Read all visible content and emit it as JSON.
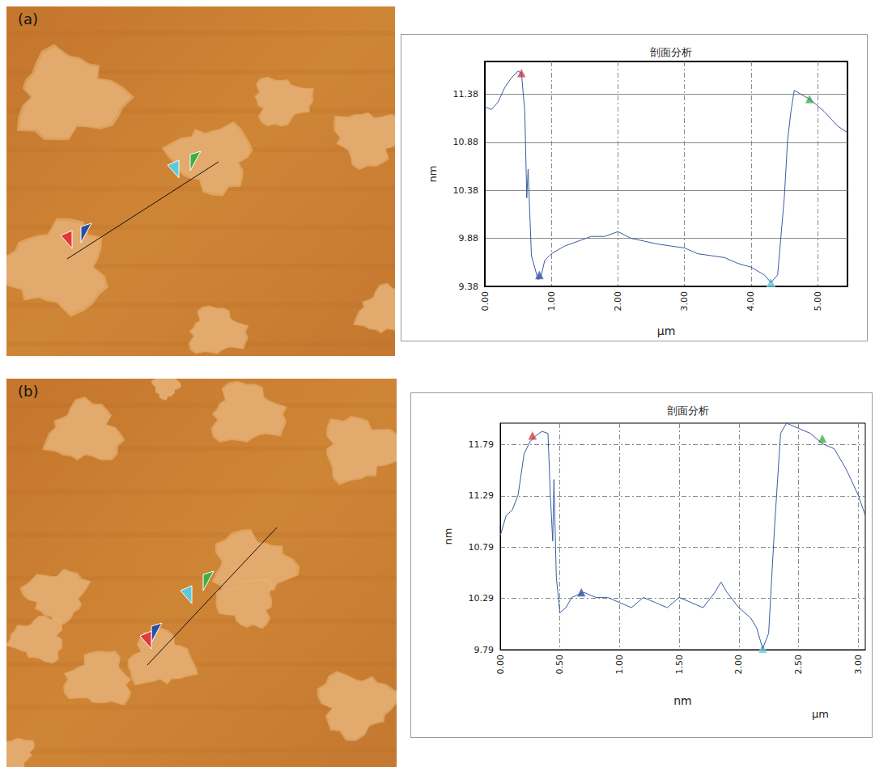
{
  "chart_data": [
    {
      "label": "(a)",
      "type": "line",
      "title": "剖面分析",
      "x_label": "μm",
      "y_label": "nm",
      "color": "#3a5ba0",
      "grid": true,
      "x": [
        0,
        0.1,
        0.2,
        0.3,
        0.4,
        0.5,
        0.55,
        0.6,
        0.63,
        0.65,
        0.7,
        0.8,
        0.85,
        0.9,
        1.0,
        1.2,
        1.4,
        1.6,
        1.8,
        2.0,
        2.2,
        2.4,
        2.6,
        2.8,
        3.0,
        3.2,
        3.4,
        3.6,
        3.8,
        4.0,
        4.2,
        4.3,
        4.4,
        4.5,
        4.55,
        4.6,
        4.65,
        4.75,
        4.9,
        5.1,
        5.3,
        5.45
      ],
      "values": [
        11.25,
        11.22,
        11.3,
        11.45,
        11.55,
        11.62,
        11.6,
        11.2,
        10.3,
        10.6,
        9.7,
        9.45,
        9.5,
        9.65,
        9.72,
        9.8,
        9.85,
        9.9,
        9.9,
        9.95,
        9.88,
        9.85,
        9.82,
        9.8,
        9.78,
        9.72,
        9.7,
        9.68,
        9.62,
        9.58,
        9.5,
        9.42,
        9.5,
        10.3,
        10.9,
        11.2,
        11.42,
        11.38,
        11.32,
        11.2,
        11.05,
        10.98
      ],
      "xlim": [
        0,
        5.45
      ],
      "ylim": [
        9.38,
        11.72
      ],
      "xticks": [
        {
          "value": 0,
          "label": "0.00"
        },
        {
          "value": 1,
          "label": "1.00"
        },
        {
          "value": 2,
          "label": "2.00"
        },
        {
          "value": 3,
          "label": "3.00"
        },
        {
          "value": 4,
          "label": "4.00"
        },
        {
          "value": 5,
          "label": "5.00"
        }
      ],
      "yticks": [
        9.38,
        9.88,
        10.38,
        10.88,
        11.38
      ],
      "markers": [
        {
          "color": "#e03a3a",
          "x": 0.55,
          "y": 11.6
        },
        {
          "color": "#2a4fa8",
          "x": 0.82,
          "y": 9.5
        },
        {
          "color": "#5ec8d8",
          "x": 4.3,
          "y": 9.42
        },
        {
          "color": "#3cb043",
          "x": 4.88,
          "y": 11.33
        }
      ]
    },
    {
      "label": "(b)",
      "type": "line",
      "title": "剖面分析",
      "x_label": "nm",
      "y_label": "nm",
      "annotations": [
        "μm"
      ],
      "color": "#3a5ba0",
      "grid": true,
      "x": [
        0,
        0.05,
        0.1,
        0.15,
        0.2,
        0.25,
        0.3,
        0.35,
        0.4,
        0.42,
        0.44,
        0.45,
        0.47,
        0.5,
        0.55,
        0.6,
        0.7,
        0.8,
        0.9,
        1.0,
        1.1,
        1.2,
        1.3,
        1.4,
        1.5,
        1.6,
        1.7,
        1.8,
        1.85,
        1.9,
        2.0,
        2.1,
        2.15,
        2.2,
        2.25,
        2.3,
        2.35,
        2.4,
        2.5,
        2.6,
        2.7,
        2.8,
        2.9,
        3.0,
        3.06
      ],
      "values": [
        10.9,
        11.1,
        11.15,
        11.3,
        11.7,
        11.82,
        11.88,
        11.92,
        11.9,
        11.3,
        10.85,
        11.45,
        10.5,
        10.15,
        10.2,
        10.3,
        10.35,
        10.3,
        10.3,
        10.25,
        10.2,
        10.3,
        10.25,
        10.2,
        10.3,
        10.25,
        10.2,
        10.35,
        10.45,
        10.35,
        10.2,
        10.1,
        10.0,
        9.8,
        9.95,
        11.0,
        11.9,
        12.0,
        11.95,
        11.9,
        11.8,
        11.75,
        11.55,
        11.3,
        11.1
      ],
      "xlim": [
        0,
        3.06
      ],
      "ylim": [
        9.79,
        12.0
      ],
      "xticks": [
        {
          "value": 0,
          "label": "0.00"
        },
        {
          "value": 0.5,
          "label": "0.50"
        },
        {
          "value": 1,
          "label": "1.00"
        },
        {
          "value": 1.5,
          "label": "1.50"
        },
        {
          "value": 2,
          "label": "2.00"
        },
        {
          "value": 2.5,
          "label": "2.50"
        },
        {
          "value": 3,
          "label": "3.00"
        }
      ],
      "yticks": [
        9.79,
        10.29,
        10.79,
        11.29,
        11.79
      ],
      "markers": [
        {
          "color": "#e03a3a",
          "x": 0.27,
          "y": 11.88
        },
        {
          "color": "#2a4fa8",
          "x": 0.68,
          "y": 10.35
        },
        {
          "color": "#5ec8d8",
          "x": 2.2,
          "y": 9.8
        },
        {
          "color": "#3cb043",
          "x": 2.7,
          "y": 11.85
        }
      ]
    }
  ]
}
